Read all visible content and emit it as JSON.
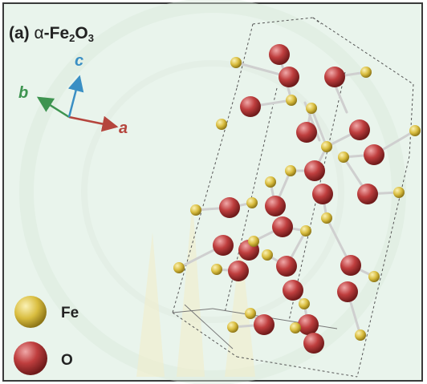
{
  "panel": {
    "label": "(a)",
    "greek_prefix": "α",
    "formula_parts": [
      "-Fe",
      "2",
      "O",
      "3"
    ]
  },
  "axes": {
    "a": {
      "label": "a",
      "color": "#b5453d"
    },
    "b": {
      "label": "b",
      "color": "#3e9450"
    },
    "c": {
      "label": "c",
      "color": "#3a8fc4"
    }
  },
  "legend": {
    "items": [
      {
        "label": "Fe",
        "color": "#d9bd3f"
      },
      {
        "label": "O",
        "color": "#bf3e3e"
      }
    ]
  },
  "colors": {
    "background": "#e9f4ec",
    "frame": "#3a3a3a",
    "bond": "#cfcfcf",
    "cell_edge": "#555555"
  }
}
